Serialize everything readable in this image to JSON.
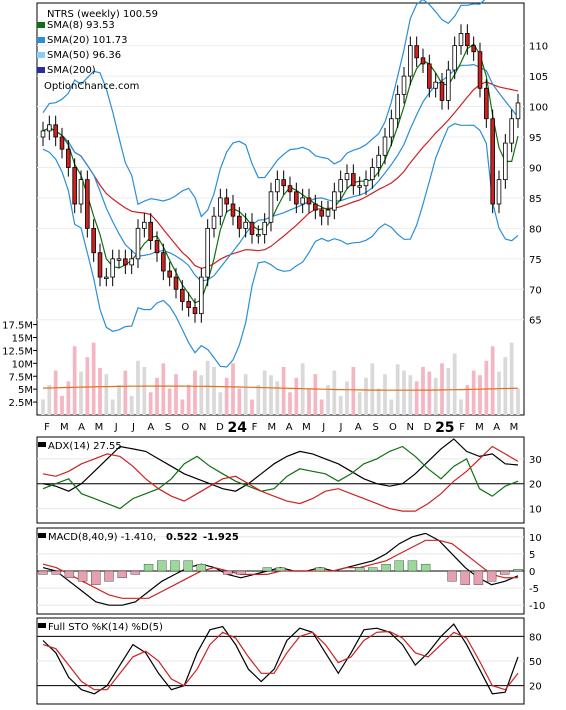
{
  "colors": {
    "up_candle": "#ffffff",
    "down_candle": "#cc2222",
    "bar_up": "#d9d9d9",
    "bar_down": "#f4b6c2",
    "sma8": "#107010",
    "sma20": "#2a8fd6",
    "sma50": "#87cefa",
    "sma200": "#2a2aa0",
    "vol_sma": "#e07020",
    "adx_line": "#000000",
    "di_plus": "#107010",
    "di_minus": "#cc2222",
    "macd_line": "#000000",
    "signal_line": "#cc2222",
    "macd_hist_pos": "#9ad99a",
    "macd_hist_neg": "#e6a0b0",
    "sto_k": "#000000",
    "sto_d": "#cc2222",
    "macd_val2_color": "#cc0000",
    "macd_val3_color": "#1a3aaa"
  },
  "chart_data": [
    {
      "type": "candlestick",
      "legend": {
        "title": "NTRS (weekly) 100.59",
        "sma8": "SMA(8) 93.53",
        "sma20": "SMA(20) 101.73",
        "sma50": "SMA(50) 96.36",
        "sma200": "SMA(200)",
        "watermark": "OptionChance.com"
      },
      "y_ticks": [
        "65",
        "70",
        "75",
        "80",
        "85",
        "90",
        "95",
        "100",
        "105",
        "110"
      ],
      "ylim": [
        62,
        117
      ],
      "x_month_labels": [
        "F",
        "M",
        "A",
        "M",
        "J",
        "J",
        "A",
        "S",
        "O",
        "N",
        "D",
        "24",
        "F",
        "M",
        "A",
        "M",
        "J",
        "J",
        "A",
        "S",
        "O",
        "N",
        "D",
        "25",
        "F",
        "M",
        "A",
        "M"
      ],
      "close_approx": [
        96,
        97,
        95,
        93,
        90,
        84,
        88,
        80,
        76,
        72,
        72,
        75,
        75,
        74,
        75,
        80,
        81,
        78,
        76,
        73,
        72,
        70,
        68,
        67,
        66,
        72,
        80,
        82,
        85,
        84,
        82,
        80,
        81,
        79,
        79,
        81,
        86,
        88,
        87,
        86,
        84,
        85,
        84,
        83,
        82,
        83,
        86,
        88,
        89,
        87,
        87,
        88,
        90,
        92,
        95,
        98,
        102,
        105,
        110,
        108,
        107,
        103,
        104,
        101,
        106,
        110,
        112,
        110,
        109,
        103,
        98,
        84,
        88,
        94,
        98,
        100.59
      ],
      "volume_y_ticks": [
        "2.5M",
        "5M",
        "7.5M",
        "10M",
        "12.5M",
        "15M",
        "17.5M"
      ],
      "volume_ylim": [
        0,
        18
      ]
    },
    {
      "type": "line",
      "label": "ADX(14) 27.55",
      "y_ticks": [
        "10",
        "20",
        "30"
      ],
      "ylim": [
        5,
        38
      ],
      "series": [
        {
          "name": "ADX",
          "values": [
            20,
            19,
            17,
            20,
            25,
            30,
            35,
            34,
            33,
            30,
            27,
            24,
            22,
            20,
            18,
            17,
            20,
            24,
            28,
            31,
            33,
            32,
            30,
            28,
            25,
            22,
            20,
            19,
            20,
            24,
            29,
            34,
            38,
            33,
            31,
            32,
            28,
            27.55
          ]
        },
        {
          "name": "+DI",
          "values": [
            18,
            20,
            22,
            16,
            14,
            12,
            10,
            14,
            16,
            18,
            22,
            28,
            31,
            27,
            24,
            21,
            19,
            17,
            18,
            23,
            26,
            25,
            24,
            21,
            24,
            28,
            30,
            33,
            35,
            31,
            26,
            22,
            27,
            30,
            18,
            15,
            19,
            21
          ]
        },
        {
          "name": "-DI",
          "values": [
            24,
            23,
            25,
            28,
            30,
            32,
            31,
            27,
            22,
            18,
            15,
            13,
            16,
            19,
            22,
            23,
            20,
            17,
            15,
            13,
            12,
            14,
            17,
            18,
            16,
            14,
            12,
            10,
            9,
            9,
            12,
            16,
            21,
            25,
            30,
            35,
            32,
            29
          ]
        }
      ]
    },
    {
      "type": "line",
      "label": "MACD(8,40,9) -1.410,",
      "label_val2": "0.522",
      "label_val3": "-1.925",
      "y_ticks": [
        "-10",
        "-5",
        "0",
        "5",
        "10"
      ],
      "ylim": [
        -12,
        12
      ],
      "series": [
        {
          "name": "MACD",
          "values": [
            1,
            0,
            -3,
            -6,
            -9,
            -10,
            -10,
            -9,
            -6,
            -3,
            -1,
            1,
            2,
            1,
            -1,
            -2,
            -1,
            0,
            1,
            0,
            0,
            1,
            0,
            1,
            2,
            3,
            5,
            8,
            10,
            11,
            9,
            5,
            1,
            -2,
            -4,
            -3,
            -1.41
          ]
        },
        {
          "name": "Signal",
          "values": [
            2,
            1,
            -1,
            -3,
            -5,
            -7,
            -8,
            -8,
            -8,
            -6,
            -4,
            -2,
            0,
            1,
            0,
            -1,
            -1,
            -1,
            0,
            0,
            0,
            0,
            0,
            1,
            1,
            2,
            3,
            5,
            7,
            9,
            9,
            8,
            5,
            2,
            -1,
            -2,
            -1.93
          ]
        },
        {
          "name": "Histogram",
          "values": [
            -1,
            -1,
            -2,
            -3,
            -4,
            -3,
            -2,
            -1,
            2,
            3,
            3,
            3,
            2,
            0,
            -1,
            -1,
            0,
            1,
            1,
            0,
            0,
            1,
            0,
            0,
            1,
            1,
            2,
            3,
            3,
            2,
            0,
            -3,
            -4,
            -4,
            -3,
            -1,
            0.52
          ]
        }
      ]
    },
    {
      "type": "line",
      "label": "Full STO %K(14) %D(5)",
      "y_ticks": [
        "20",
        "50",
        "80"
      ],
      "ylim": [
        0,
        100
      ],
      "series": [
        {
          "name": "%K",
          "values": [
            75,
            60,
            30,
            15,
            10,
            20,
            45,
            70,
            60,
            35,
            15,
            20,
            60,
            88,
            92,
            70,
            40,
            25,
            40,
            75,
            90,
            85,
            60,
            35,
            60,
            88,
            90,
            85,
            70,
            45,
            60,
            80,
            95,
            70,
            40,
            10,
            12,
            55
          ]
        },
        {
          "name": "%D",
          "values": [
            70,
            65,
            45,
            25,
            15,
            15,
            35,
            55,
            62,
            50,
            28,
            20,
            40,
            70,
            85,
            78,
            55,
            35,
            35,
            60,
            80,
            85,
            70,
            48,
            55,
            75,
            85,
            86,
            78,
            60,
            55,
            70,
            85,
            78,
            50,
            20,
            15,
            35
          ]
        }
      ]
    }
  ]
}
